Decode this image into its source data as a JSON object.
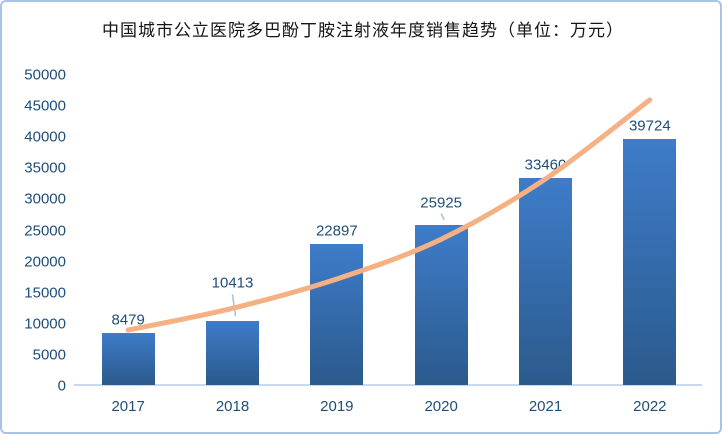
{
  "title": "中国城市公立医院多巴酚丁胺注射液年度销售趋势（单位：万元）",
  "chart_data": {
    "type": "bar",
    "title": "中国城市公立医院多巴酚丁胺注射液年度销售趋势（单位：万元）",
    "categories": [
      "2017",
      "2018",
      "2019",
      "2020",
      "2021",
      "2022"
    ],
    "series": [
      {
        "name": "annual-sales-bars",
        "type": "bar",
        "values": [
          8479,
          10413,
          22897,
          25925,
          33460,
          39724
        ]
      },
      {
        "name": "trendline",
        "type": "line",
        "values": [
          9000,
          12500,
          17200,
          23600,
          33300,
          46000
        ]
      }
    ],
    "data_labels": [
      "8479",
      "10413",
      "22897",
      "25925",
      "33460",
      "39724"
    ],
    "yticks": [
      0,
      5000,
      10000,
      15000,
      20000,
      25000,
      30000,
      35000,
      40000,
      45000,
      50000
    ],
    "ylim": [
      0,
      50000
    ],
    "xlabel": "",
    "ylabel": "",
    "grid": false,
    "legend": "none",
    "colors": {
      "bar_gradient_top": "#3E7CC9",
      "bar_gradient_bottom": "#2B5A8C",
      "trendline": "#F5B183",
      "axis_text": "#1F4E79",
      "axis_line": "#C9D8EB",
      "leader_line": "#9DC3E6",
      "frame_border": "#A6C4E7",
      "title_text": "#151515"
    }
  }
}
